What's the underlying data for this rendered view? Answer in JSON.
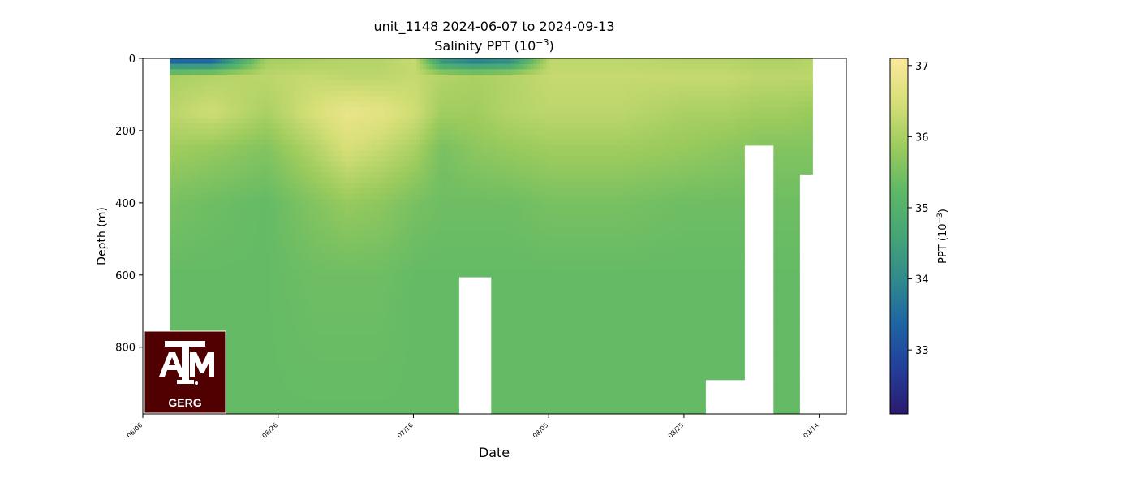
{
  "chart_data": {
    "type": "heatmap",
    "title": "unit_1148 2024-06-07 to 2024-09-13",
    "subtitle_prefix": "Salinity PPT (10",
    "subtitle_exp": "−3",
    "subtitle_suffix": ")",
    "xlabel": "Date",
    "ylabel": "Depth (m)",
    "x_range": [
      "2024-06-06",
      "2024-09-18"
    ],
    "x_ticks": [
      "06/06",
      "06/26",
      "07/16",
      "08/05",
      "08/25",
      "09/14"
    ],
    "y_range": [
      0,
      985
    ],
    "y_inverted": true,
    "y_ticks": [
      0,
      200,
      400,
      600,
      800
    ],
    "colorbar": {
      "label_prefix": "PPT (10",
      "label_exp": "−3",
      "label_suffix": ")",
      "range": [
        32.1,
        37.1
      ],
      "ticks": [
        33,
        34,
        35,
        36,
        37
      ],
      "colormap": [
        "#2b1a6e",
        "#233d9a",
        "#1e63a4",
        "#2f8a8c",
        "#45a577",
        "#5db866",
        "#9ccb5d",
        "#d6df77",
        "#fbe99a"
      ]
    },
    "data_start": "2024-06-10",
    "data_end": "2024-09-13",
    "profiles": [
      {
        "date": "2024-06-10",
        "s0": 33.0,
        "s50": 36.0,
        "s150": 36.2,
        "s250": 35.9,
        "s400": 35.5,
        "s600": 35.3,
        "s985": 35.3,
        "max_depth": 985
      },
      {
        "date": "2024-06-16",
        "s0": 33.0,
        "s50": 36.1,
        "s150": 36.4,
        "s250": 35.8,
        "s400": 35.4,
        "s600": 35.3,
        "s985": 35.3,
        "max_depth": 985
      },
      {
        "date": "2024-06-24",
        "s0": 35.9,
        "s50": 36.2,
        "s150": 36.0,
        "s250": 35.6,
        "s400": 35.3,
        "s600": 35.3,
        "s985": 35.3,
        "max_depth": 985
      },
      {
        "date": "2024-07-01",
        "s0": 36.0,
        "s50": 36.3,
        "s150": 36.5,
        "s250": 36.1,
        "s400": 35.6,
        "s600": 35.4,
        "s985": 35.3,
        "max_depth": 985
      },
      {
        "date": "2024-07-06",
        "s0": 36.1,
        "s50": 36.2,
        "s150": 36.8,
        "s250": 36.5,
        "s400": 35.8,
        "s600": 35.4,
        "s985": 35.3,
        "max_depth": 985
      },
      {
        "date": "2024-07-11",
        "s0": 36.1,
        "s50": 36.2,
        "s150": 36.7,
        "s250": 36.3,
        "s400": 35.7,
        "s600": 35.4,
        "s985": 35.3,
        "max_depth": 985
      },
      {
        "date": "2024-07-16",
        "s0": 36.3,
        "s50": 36.3,
        "s150": 36.4,
        "s250": 36.0,
        "s400": 35.5,
        "s600": 35.3,
        "s985": 35.3,
        "max_depth": 985
      },
      {
        "date": "2024-07-20",
        "s0": 34.0,
        "s50": 36.1,
        "s150": 35.9,
        "s250": 35.5,
        "s400": 35.4,
        "s600": 35.3,
        "s985": 35.3,
        "max_depth": 985
      },
      {
        "date": "2024-07-25",
        "s0": 33.5,
        "s50": 36.0,
        "s150": 35.9,
        "s250": 35.7,
        "s400": 35.4,
        "s600": 35.3,
        "s985": 35.3,
        "max_depth": 605
      },
      {
        "date": "2024-07-30",
        "s0": 33.8,
        "s50": 36.1,
        "s150": 36.1,
        "s250": 35.8,
        "s400": 35.4,
        "s600": 35.3,
        "s985": 35.3,
        "max_depth": 985
      },
      {
        "date": "2024-08-05",
        "s0": 36.2,
        "s50": 36.3,
        "s150": 36.2,
        "s250": 35.9,
        "s400": 35.5,
        "s600": 35.3,
        "s985": 35.3,
        "max_depth": 985
      },
      {
        "date": "2024-08-15",
        "s0": 36.2,
        "s50": 36.3,
        "s150": 36.2,
        "s250": 35.9,
        "s400": 35.5,
        "s600": 35.3,
        "s985": 35.3,
        "max_depth": 985
      },
      {
        "date": "2024-08-25",
        "s0": 36.1,
        "s50": 36.3,
        "s150": 36.0,
        "s250": 35.8,
        "s400": 35.4,
        "s600": 35.3,
        "s985": 35.3,
        "max_depth": 985
      },
      {
        "date": "2024-08-31",
        "s0": 36.1,
        "s50": 36.3,
        "s150": 36.0,
        "s250": 35.7,
        "s400": 35.4,
        "s600": 35.3,
        "s985": 35.3,
        "max_depth": 890
      },
      {
        "date": "2024-09-05",
        "s0": 36.0,
        "s50": 36.2,
        "s150": 35.9,
        "s250": 35.6,
        "s400": 35.4,
        "s600": 35.3,
        "s985": 35.3,
        "max_depth": 240
      },
      {
        "date": "2024-09-09",
        "s0": 36.0,
        "s50": 36.2,
        "s150": 35.9,
        "s250": 35.6,
        "s400": 35.4,
        "s600": 35.3,
        "s985": 35.3,
        "max_depth": 985
      },
      {
        "date": "2024-09-13",
        "s0": 36.1,
        "s50": 36.2,
        "s150": 35.8,
        "s250": 35.6,
        "s400": 35.4,
        "s600": 35.3,
        "s985": 35.3,
        "max_depth": 320
      }
    ]
  },
  "logo": {
    "brand_text": "GERG",
    "monogram": "ATM",
    "background": "#500000",
    "foreground": "#ffffff"
  }
}
